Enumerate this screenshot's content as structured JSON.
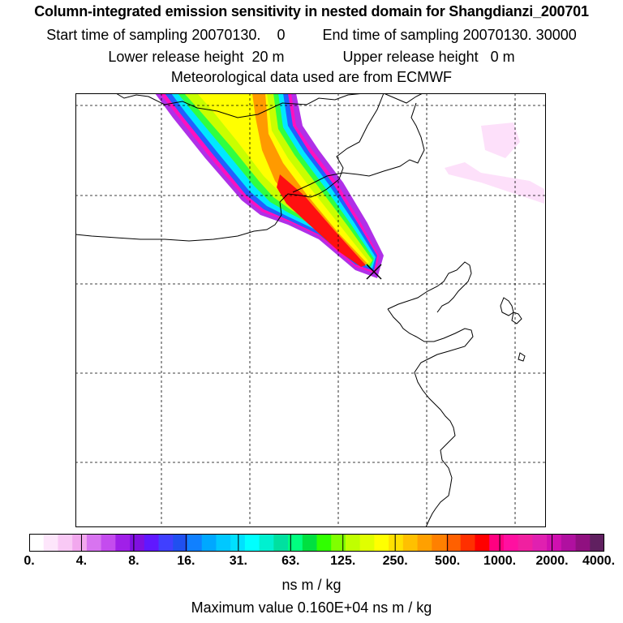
{
  "title": "Column-integrated emission sensitivity in nested domain for Shangdianzi_200701",
  "sampling": {
    "start_label": "Start time of sampling",
    "start_value": "20070130.",
    "start_hour": "0",
    "end_label": "End time of sampling",
    "end_value": "20070130. 30000"
  },
  "release": {
    "lower_label": "Lower release height",
    "lower_value": "20 m",
    "upper_label": "Upper release height",
    "upper_value": "0 m"
  },
  "met_note": "Meteorological data used are from ECMWF",
  "colorbar": {
    "labels": [
      "0.",
      "4.",
      "8.",
      "16.",
      "31.",
      "63.",
      "125.",
      "250.",
      "500.",
      "1000.",
      "2000.",
      "4000."
    ],
    "colors": [
      "#ffffff",
      "#fde6fb",
      "#f9c9f5",
      "#f2a8ee",
      "#d874f0",
      "#c44cee",
      "#a020e8",
      "#8010e0",
      "#6018ff",
      "#4040ff",
      "#2050f0",
      "#1080ff",
      "#00a8ff",
      "#00c8ff",
      "#00e0ff",
      "#00ffff",
      "#00f0d0",
      "#00e0a0",
      "#00ff80",
      "#00e040",
      "#30ff00",
      "#80ff00",
      "#c0ff00",
      "#e0ff00",
      "#ffff00",
      "#ffe000",
      "#ffc000",
      "#ffa000",
      "#ff8000",
      "#ff6000",
      "#ff3000",
      "#ff0000",
      "#ff0080",
      "#ff10a0",
      "#f020a0",
      "#e020b0",
      "#d010b0",
      "#b010a0",
      "#901080",
      "#602060"
    ],
    "units": "ns m / kg"
  },
  "max_value_label": "Maximum value  0.160E+04 ns m / kg"
}
